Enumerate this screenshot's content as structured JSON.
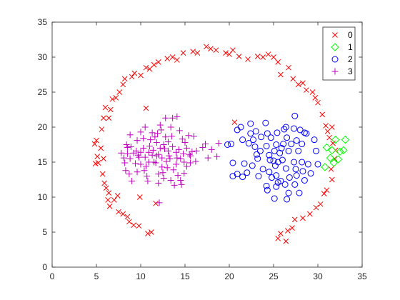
{
  "chart_data": {
    "type": "scatter",
    "title": "",
    "xlabel": "",
    "ylabel": "",
    "xlim": [
      0,
      35
    ],
    "ylim": [
      0,
      35
    ],
    "xticks": [
      0,
      5,
      10,
      15,
      20,
      25,
      30,
      35
    ],
    "yticks": [
      0,
      5,
      10,
      15,
      20,
      25,
      30,
      35
    ],
    "grid": false,
    "box": true,
    "legend_position": "top-right",
    "series": [
      {
        "name": "0",
        "marker": "x",
        "color": "#ff0000",
        "points": [
          [
            4.9,
            14.8
          ],
          [
            5.1,
            15.8
          ],
          [
            4.8,
            17.6
          ],
          [
            5.0,
            18.1
          ],
          [
            5.6,
            19.7
          ],
          [
            5.5,
            17.0
          ],
          [
            5.8,
            15.5
          ],
          [
            5.2,
            14.9
          ],
          [
            5.7,
            13.3
          ],
          [
            5.9,
            12.0
          ],
          [
            6.1,
            11.3
          ],
          [
            6.4,
            10.6
          ],
          [
            6.3,
            9.6
          ],
          [
            7.0,
            9.6
          ],
          [
            6.5,
            8.7
          ],
          [
            7.5,
            7.9
          ],
          [
            8.0,
            7.6
          ],
          [
            8.5,
            7.2
          ],
          [
            8.7,
            6.5
          ],
          [
            9.2,
            6.0
          ],
          [
            9.8,
            5.9
          ],
          [
            10.8,
            4.8
          ],
          [
            11.2,
            5.0
          ],
          [
            11.7,
            9.1
          ],
          [
            9.9,
            10.0
          ],
          [
            7.4,
            10.2
          ],
          [
            5.8,
            21.3
          ],
          [
            6.0,
            22.8
          ],
          [
            6.4,
            21.3
          ],
          [
            6.6,
            22.5
          ],
          [
            6.8,
            24.0
          ],
          [
            7.2,
            24.2
          ],
          [
            7.6,
            25.0
          ],
          [
            8.0,
            26.1
          ],
          [
            8.2,
            26.9
          ],
          [
            9.0,
            27.2
          ],
          [
            9.3,
            27.7
          ],
          [
            10.0,
            27.4
          ],
          [
            10.6,
            28.5
          ],
          [
            11.0,
            28.3
          ],
          [
            11.5,
            28.9
          ],
          [
            12.0,
            29.3
          ],
          [
            13.0,
            29.8
          ],
          [
            13.6,
            30.0
          ],
          [
            14.1,
            29.6
          ],
          [
            14.8,
            30.6
          ],
          [
            15.9,
            30.8
          ],
          [
            16.4,
            30.6
          ],
          [
            17.4,
            31.5
          ],
          [
            17.9,
            31.2
          ],
          [
            18.5,
            31.0
          ],
          [
            19.6,
            30.6
          ],
          [
            20.0,
            30.4
          ],
          [
            20.4,
            31.0
          ],
          [
            21.1,
            30.1
          ],
          [
            22.1,
            29.7
          ],
          [
            23.2,
            30.1
          ],
          [
            23.8,
            30.0
          ],
          [
            24.4,
            30.4
          ],
          [
            25.0,
            30.0
          ],
          [
            25.5,
            29.3
          ],
          [
            25.8,
            27.5
          ],
          [
            26.7,
            28.5
          ],
          [
            27.2,
            26.9
          ],
          [
            27.8,
            26.1
          ],
          [
            28.3,
            26.3
          ],
          [
            28.7,
            25.3
          ],
          [
            29.4,
            25.0
          ],
          [
            29.7,
            24.2
          ],
          [
            30.0,
            23.5
          ],
          [
            30.5,
            21.8
          ],
          [
            30.9,
            20.2
          ],
          [
            31.1,
            19.4
          ],
          [
            31.6,
            20.0
          ],
          [
            31.3,
            18.5
          ],
          [
            31.7,
            17.7
          ],
          [
            32.0,
            16.7
          ],
          [
            31.9,
            15.5
          ],
          [
            31.5,
            14.0
          ],
          [
            31.6,
            12.5
          ],
          [
            31.0,
            11.0
          ],
          [
            30.7,
            10.5
          ],
          [
            30.3,
            9.0
          ],
          [
            29.8,
            8.5
          ],
          [
            29.1,
            7.6
          ],
          [
            28.3,
            7.0
          ],
          [
            27.4,
            6.8
          ],
          [
            27.1,
            5.6
          ],
          [
            26.6,
            5.2
          ],
          [
            25.8,
            4.8
          ],
          [
            25.5,
            4.1
          ],
          [
            26.4,
            3.7
          ],
          [
            20.6,
            20.7
          ],
          [
            10.6,
            22.7
          ]
        ]
      },
      {
        "name": "1",
        "marker": "diamond",
        "color": "#00ff00",
        "points": [
          [
            31.0,
            17.1
          ],
          [
            31.6,
            16.7
          ],
          [
            32.0,
            18.2
          ],
          [
            32.5,
            16.5
          ],
          [
            33.1,
            18.2
          ],
          [
            32.9,
            16.7
          ],
          [
            31.8,
            14.9
          ],
          [
            32.3,
            15.4
          ],
          [
            30.8,
            14.3
          ],
          [
            31.4,
            15.6
          ]
        ]
      },
      {
        "name": "2",
        "marker": "o",
        "color": "#0000ff",
        "points": [
          [
            19.8,
            17.5
          ],
          [
            20.2,
            17.6
          ],
          [
            20.9,
            19.6
          ],
          [
            21.3,
            20.0
          ],
          [
            20.4,
            14.9
          ],
          [
            20.4,
            13.0
          ],
          [
            20.9,
            13.3
          ],
          [
            21.7,
            14.8
          ],
          [
            21.5,
            12.9
          ],
          [
            21.5,
            18.2
          ],
          [
            22.2,
            17.7
          ],
          [
            22.4,
            20.5
          ],
          [
            22.4,
            19.1
          ],
          [
            22.7,
            18.2
          ],
          [
            22.9,
            17.2
          ],
          [
            23.1,
            16.1
          ],
          [
            23.0,
            19.4
          ],
          [
            23.5,
            16.6
          ],
          [
            23.6,
            18.6
          ],
          [
            23.2,
            15.5
          ],
          [
            23.8,
            14.0
          ],
          [
            24.1,
            20.6
          ],
          [
            24.3,
            19.1
          ],
          [
            24.2,
            17.3
          ],
          [
            24.5,
            16.0
          ],
          [
            24.7,
            18.5
          ],
          [
            24.5,
            13.6
          ],
          [
            24.3,
            11.0
          ],
          [
            24.8,
            12.8
          ],
          [
            25.0,
            15.2
          ],
          [
            25.1,
            16.6
          ],
          [
            25.3,
            17.5
          ],
          [
            25.4,
            19.2
          ],
          [
            25.2,
            14.5
          ],
          [
            25.3,
            13.1
          ],
          [
            25.5,
            12.1
          ],
          [
            25.1,
            9.8
          ],
          [
            25.7,
            16.3
          ],
          [
            26.0,
            15.3
          ],
          [
            26.1,
            17.6
          ],
          [
            26.2,
            19.7
          ],
          [
            26.5,
            18.5
          ],
          [
            26.4,
            14.1
          ],
          [
            26.7,
            16.6
          ],
          [
            26.3,
            11.8
          ],
          [
            26.8,
            12.8
          ],
          [
            26.7,
            10.6
          ],
          [
            27.0,
            17.6
          ],
          [
            27.3,
            19.8
          ],
          [
            27.4,
            21.6
          ],
          [
            27.6,
            18.1
          ],
          [
            27.3,
            15.0
          ],
          [
            27.5,
            14.0
          ],
          [
            27.6,
            13.1
          ],
          [
            27.8,
            16.6
          ],
          [
            27.9,
            10.6
          ],
          [
            28.2,
            17.6
          ],
          [
            28.2,
            15.0
          ],
          [
            28.5,
            19.2
          ],
          [
            28.7,
            19.1
          ],
          [
            28.3,
            13.7
          ],
          [
            28.9,
            14.7
          ],
          [
            28.5,
            12.4
          ],
          [
            29.2,
            13.4
          ],
          [
            29.6,
            18.2
          ],
          [
            29.8,
            16.6
          ],
          [
            30.0,
            14.7
          ],
          [
            24.2,
            11.6
          ],
          [
            26.5,
            9.7
          ],
          [
            25.9,
            17.0
          ],
          [
            24.6,
            15.3
          ],
          [
            25.5,
            15.0
          ],
          [
            25.3,
            11.5
          ],
          [
            27.4,
            11.8
          ],
          [
            22.6,
            14.5
          ],
          [
            26.4,
            20.0
          ],
          [
            23.3,
            13.0
          ],
          [
            28.0,
            19.6
          ],
          [
            25.8,
            12.3
          ],
          [
            22.0,
            13.5
          ]
        ]
      },
      {
        "name": "3",
        "marker": "+",
        "color": "#bf00bf",
        "points": [
          [
            7.8,
            16.3
          ],
          [
            8.1,
            15.6
          ],
          [
            8.2,
            14.9
          ],
          [
            8.5,
            16.2
          ],
          [
            8.4,
            17.5
          ],
          [
            8.8,
            18.9
          ],
          [
            8.9,
            17.2
          ],
          [
            8.8,
            15.5
          ],
          [
            8.3,
            13.8
          ],
          [
            8.7,
            13.3
          ],
          [
            9.0,
            12.3
          ],
          [
            9.2,
            16.3
          ],
          [
            9.4,
            14.8
          ],
          [
            9.6,
            13.6
          ],
          [
            9.6,
            18.1
          ],
          [
            9.7,
            16.0
          ],
          [
            9.8,
            15.7
          ],
          [
            10.0,
            19.3
          ],
          [
            10.0,
            16.4
          ],
          [
            10.0,
            14.7
          ],
          [
            10.3,
            17.0
          ],
          [
            10.3,
            18.4
          ],
          [
            10.5,
            20.0
          ],
          [
            10.5,
            15.7
          ],
          [
            10.6,
            14.4
          ],
          [
            10.7,
            13.0
          ],
          [
            10.8,
            12.3
          ],
          [
            10.9,
            16.4
          ],
          [
            10.9,
            15.0
          ],
          [
            11.1,
            18.2
          ],
          [
            11.0,
            17.3
          ],
          [
            11.3,
            16.0
          ],
          [
            11.3,
            19.2
          ],
          [
            11.5,
            15.0
          ],
          [
            11.6,
            18.6
          ],
          [
            11.7,
            14.9
          ],
          [
            11.8,
            15.9
          ],
          [
            11.8,
            17.8
          ],
          [
            12.0,
            13.3
          ],
          [
            12.0,
            16.1
          ],
          [
            12.0,
            12.0
          ],
          [
            12.2,
            17.0
          ],
          [
            12.2,
            20.3
          ],
          [
            12.4,
            15.6
          ],
          [
            12.3,
            19.6
          ],
          [
            12.4,
            14.3
          ],
          [
            12.5,
            13.5
          ],
          [
            12.7,
            16.9
          ],
          [
            12.6,
            12.7
          ],
          [
            12.8,
            18.6
          ],
          [
            12.8,
            21.3
          ],
          [
            12.9,
            15.1
          ],
          [
            13.1,
            17.9
          ],
          [
            13.1,
            16.6
          ],
          [
            13.3,
            15.5
          ],
          [
            13.4,
            20.0
          ],
          [
            13.4,
            12.4
          ],
          [
            13.5,
            18.7
          ],
          [
            13.6,
            17.2
          ],
          [
            13.7,
            13.9
          ],
          [
            13.8,
            11.7
          ],
          [
            14.0,
            14.7
          ],
          [
            14.0,
            16.4
          ],
          [
            14.1,
            15.6
          ],
          [
            14.1,
            21.5
          ],
          [
            14.3,
            16.8
          ],
          [
            14.4,
            19.5
          ],
          [
            14.5,
            12.4
          ],
          [
            14.5,
            15.5
          ],
          [
            14.7,
            18.3
          ],
          [
            14.8,
            16.2
          ],
          [
            14.9,
            15.0
          ],
          [
            14.9,
            13.4
          ],
          [
            15.0,
            17.8
          ],
          [
            15.2,
            14.4
          ],
          [
            15.2,
            17.0
          ],
          [
            15.4,
            18.8
          ],
          [
            15.5,
            16.1
          ],
          [
            15.6,
            14.9
          ],
          [
            15.6,
            15.9
          ],
          [
            15.8,
            16.5
          ],
          [
            16.0,
            18.7
          ],
          [
            16.2,
            15.1
          ],
          [
            16.3,
            16.6
          ],
          [
            14.6,
            11.8
          ],
          [
            13.0,
            14.2
          ],
          [
            12.6,
            17.5
          ],
          [
            9.5,
            16.6
          ],
          [
            10.4,
            13.8
          ],
          [
            11.4,
            16.7
          ],
          [
            13.2,
            15.9
          ],
          [
            14.2,
            13.1
          ],
          [
            13.6,
            21.3
          ],
          [
            17.3,
            17.6
          ],
          [
            17.6,
            15.6
          ],
          [
            17.0,
            17.1
          ],
          [
            18.0,
            16.8
          ],
          [
            18.8,
            17.7
          ],
          [
            18.6,
            15.8
          ],
          [
            8.5,
            17.1
          ],
          [
            11.9,
            19.1
          ],
          [
            12.1,
            9.2
          ]
        ]
      }
    ]
  }
}
